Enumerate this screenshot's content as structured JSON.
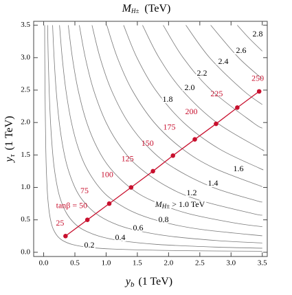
{
  "chart_data": {
    "type": "contour",
    "title": "M",
    "title_sub": "H±",
    "title_unit": "(TeV)",
    "xlabel": "y",
    "xlabel_sub": "b",
    "xlabel_unit": "(1 TeV)",
    "ylabel": "y",
    "ylabel_sub": "τ",
    "ylabel_unit": "(1 TeV)",
    "xlim": [
      -0.16,
      3.58
    ],
    "ylim": [
      -0.065,
      3.56
    ],
    "xticks": [
      {
        "value": 0,
        "label": "0.0"
      },
      0.5,
      {
        "value": 1,
        "label": "1.0"
      },
      1.5,
      {
        "value": 2,
        "label": "2.0"
      },
      2.5,
      {
        "value": 3,
        "label": "3.0"
      },
      3.5
    ],
    "yticks": [
      {
        "value": 0,
        "label": "0.0"
      },
      0.5,
      {
        "value": 1,
        "label": "1.0"
      },
      1.5,
      {
        "value": 2,
        "label": "2.0"
      },
      2.5,
      {
        "value": 3,
        "label": "3.0"
      },
      3.5
    ],
    "contour_color": "#777777",
    "contours": [
      {
        "label": "0.2",
        "x": [
          0.016,
          0.018,
          0.022,
          0.028,
          0.034,
          0.042,
          0.055,
          0.069,
          0.092,
          0.122,
          0.157,
          0.22,
          0.306,
          0.458,
          0.688,
          1.1,
          1.833,
          2.75,
          3.5
        ],
        "values": [
          3.5,
          3,
          2.5,
          2,
          1.6,
          1.3,
          1.0,
          0.8,
          0.6,
          0.45,
          0.35,
          0.25,
          0.18,
          0.12,
          0.08,
          0.05,
          0.03,
          0.02,
          0.016
        ]
      },
      {
        "label": "0.4",
        "x": [
          0.063,
          0.073,
          0.088,
          0.11,
          0.138,
          0.169,
          0.22,
          0.275,
          0.367,
          0.489,
          0.629,
          0.88,
          1.222,
          1.833,
          2.75,
          3.5
        ],
        "values": [
          3.5,
          3,
          2.5,
          2,
          1.6,
          1.3,
          1.0,
          0.8,
          0.6,
          0.45,
          0.35,
          0.25,
          0.18,
          0.12,
          0.08,
          0.063
        ]
      },
      {
        "label": "0.6",
        "x": [
          0.143,
          0.167,
          0.2,
          0.25,
          0.313,
          0.385,
          0.5,
          0.625,
          0.833,
          1.111,
          1.429,
          2.0,
          2.778,
          3.5
        ],
        "values": [
          3.5,
          3,
          2.5,
          2,
          1.6,
          1.3,
          1.0,
          0.8,
          0.6,
          0.45,
          0.35,
          0.25,
          0.18,
          0.143
        ]
      },
      {
        "label": "0.8",
        "x": [
          0.254,
          0.297,
          0.356,
          0.445,
          0.556,
          0.685,
          0.89,
          1.113,
          1.483,
          1.978,
          2.543,
          3.5
        ],
        "values": [
          3.5,
          3,
          2.5,
          2,
          1.6,
          1.3,
          1.0,
          0.8,
          0.6,
          0.45,
          0.35,
          0.254
        ]
      },
      {
        "label_prefix": "M",
        "label_sub": "H±",
        "label": "> 1.0 TeV",
        "x": [
          0.394,
          0.46,
          0.552,
          0.69,
          0.863,
          1.062,
          1.38,
          1.725,
          2.3,
          3.067,
          3.5
        ],
        "values": [
          3.5,
          3,
          2.5,
          2,
          1.6,
          1.3,
          1.0,
          0.8,
          0.6,
          0.45,
          0.394
        ]
      },
      {
        "label": "1.2",
        "x": [
          0.571,
          0.667,
          0.8,
          1.0,
          1.25,
          1.538,
          2.0,
          2.5,
          3.333,
          3.5
        ],
        "values": [
          3.5,
          3,
          2.5,
          2,
          1.6,
          1.3,
          1.0,
          0.8,
          0.6,
          0.571
        ]
      },
      {
        "label": "1.4",
        "x": [
          0.774,
          0.903,
          1.084,
          1.355,
          1.694,
          2.085,
          2.71,
          3.388,
          3.5
        ],
        "values": [
          3.5,
          3,
          2.5,
          2,
          1.6,
          1.3,
          1.0,
          0.8,
          0.774
        ]
      },
      {
        "label": "1.6",
        "x": [
          1.011,
          1.18,
          1.416,
          1.77,
          2.213,
          2.723,
          3.5
        ],
        "values": [
          3.5,
          3,
          2.5,
          2,
          1.6,
          1.3,
          1.011
        ]
      },
      {
        "label": "1.8",
        "x": [
          1.28,
          1.493,
          1.792,
          2.24,
          2.8,
          3.446,
          3.5
        ],
        "values": [
          3.5,
          3,
          2.5,
          2,
          1.6,
          1.3,
          1.28
        ]
      },
      {
        "label": "2.0",
        "x": [
          1.583,
          1.847,
          2.216,
          2.77,
          3.463,
          3.5
        ],
        "values": [
          3.5,
          3,
          2.5,
          2,
          1.6,
          1.583
        ]
      },
      {
        "label": "2.2",
        "x": [
          1.914,
          2.233,
          2.68,
          3.35,
          3.5
        ],
        "values": [
          3.5,
          3,
          2.5,
          2,
          1.914
        ]
      },
      {
        "label": "2.4",
        "x": [
          2.277,
          2.657,
          3.188,
          3.5
        ],
        "values": [
          3.5,
          3,
          2.5,
          2.277
        ]
      },
      {
        "label": "2.6",
        "x": [
          2.674,
          3.12,
          3.5
        ],
        "values": [
          3.5,
          3,
          2.674
        ]
      },
      {
        "label": "2.8",
        "x": [
          3.1,
          3.288,
          3.5
        ],
        "values": [
          3.5,
          3.3,
          3.1
        ]
      }
    ],
    "line": {
      "color": "#c8102e",
      "x": [
        0.35,
        0.7,
        1.05,
        1.4,
        1.75,
        2.07,
        2.42,
        2.76,
        3.1,
        3.45
      ],
      "values": [
        0.25,
        0.5,
        0.75,
        1.0,
        1.25,
        1.49,
        1.74,
        1.98,
        2.23,
        2.48
      ],
      "tan_beta": [
        25,
        50,
        75,
        100,
        125,
        150,
        175,
        200,
        225,
        250
      ],
      "value_labels": [
        "25",
        "tanβ = 50",
        "75",
        "100",
        "125",
        "150",
        "175",
        "200",
        "225",
        "250"
      ]
    }
  }
}
